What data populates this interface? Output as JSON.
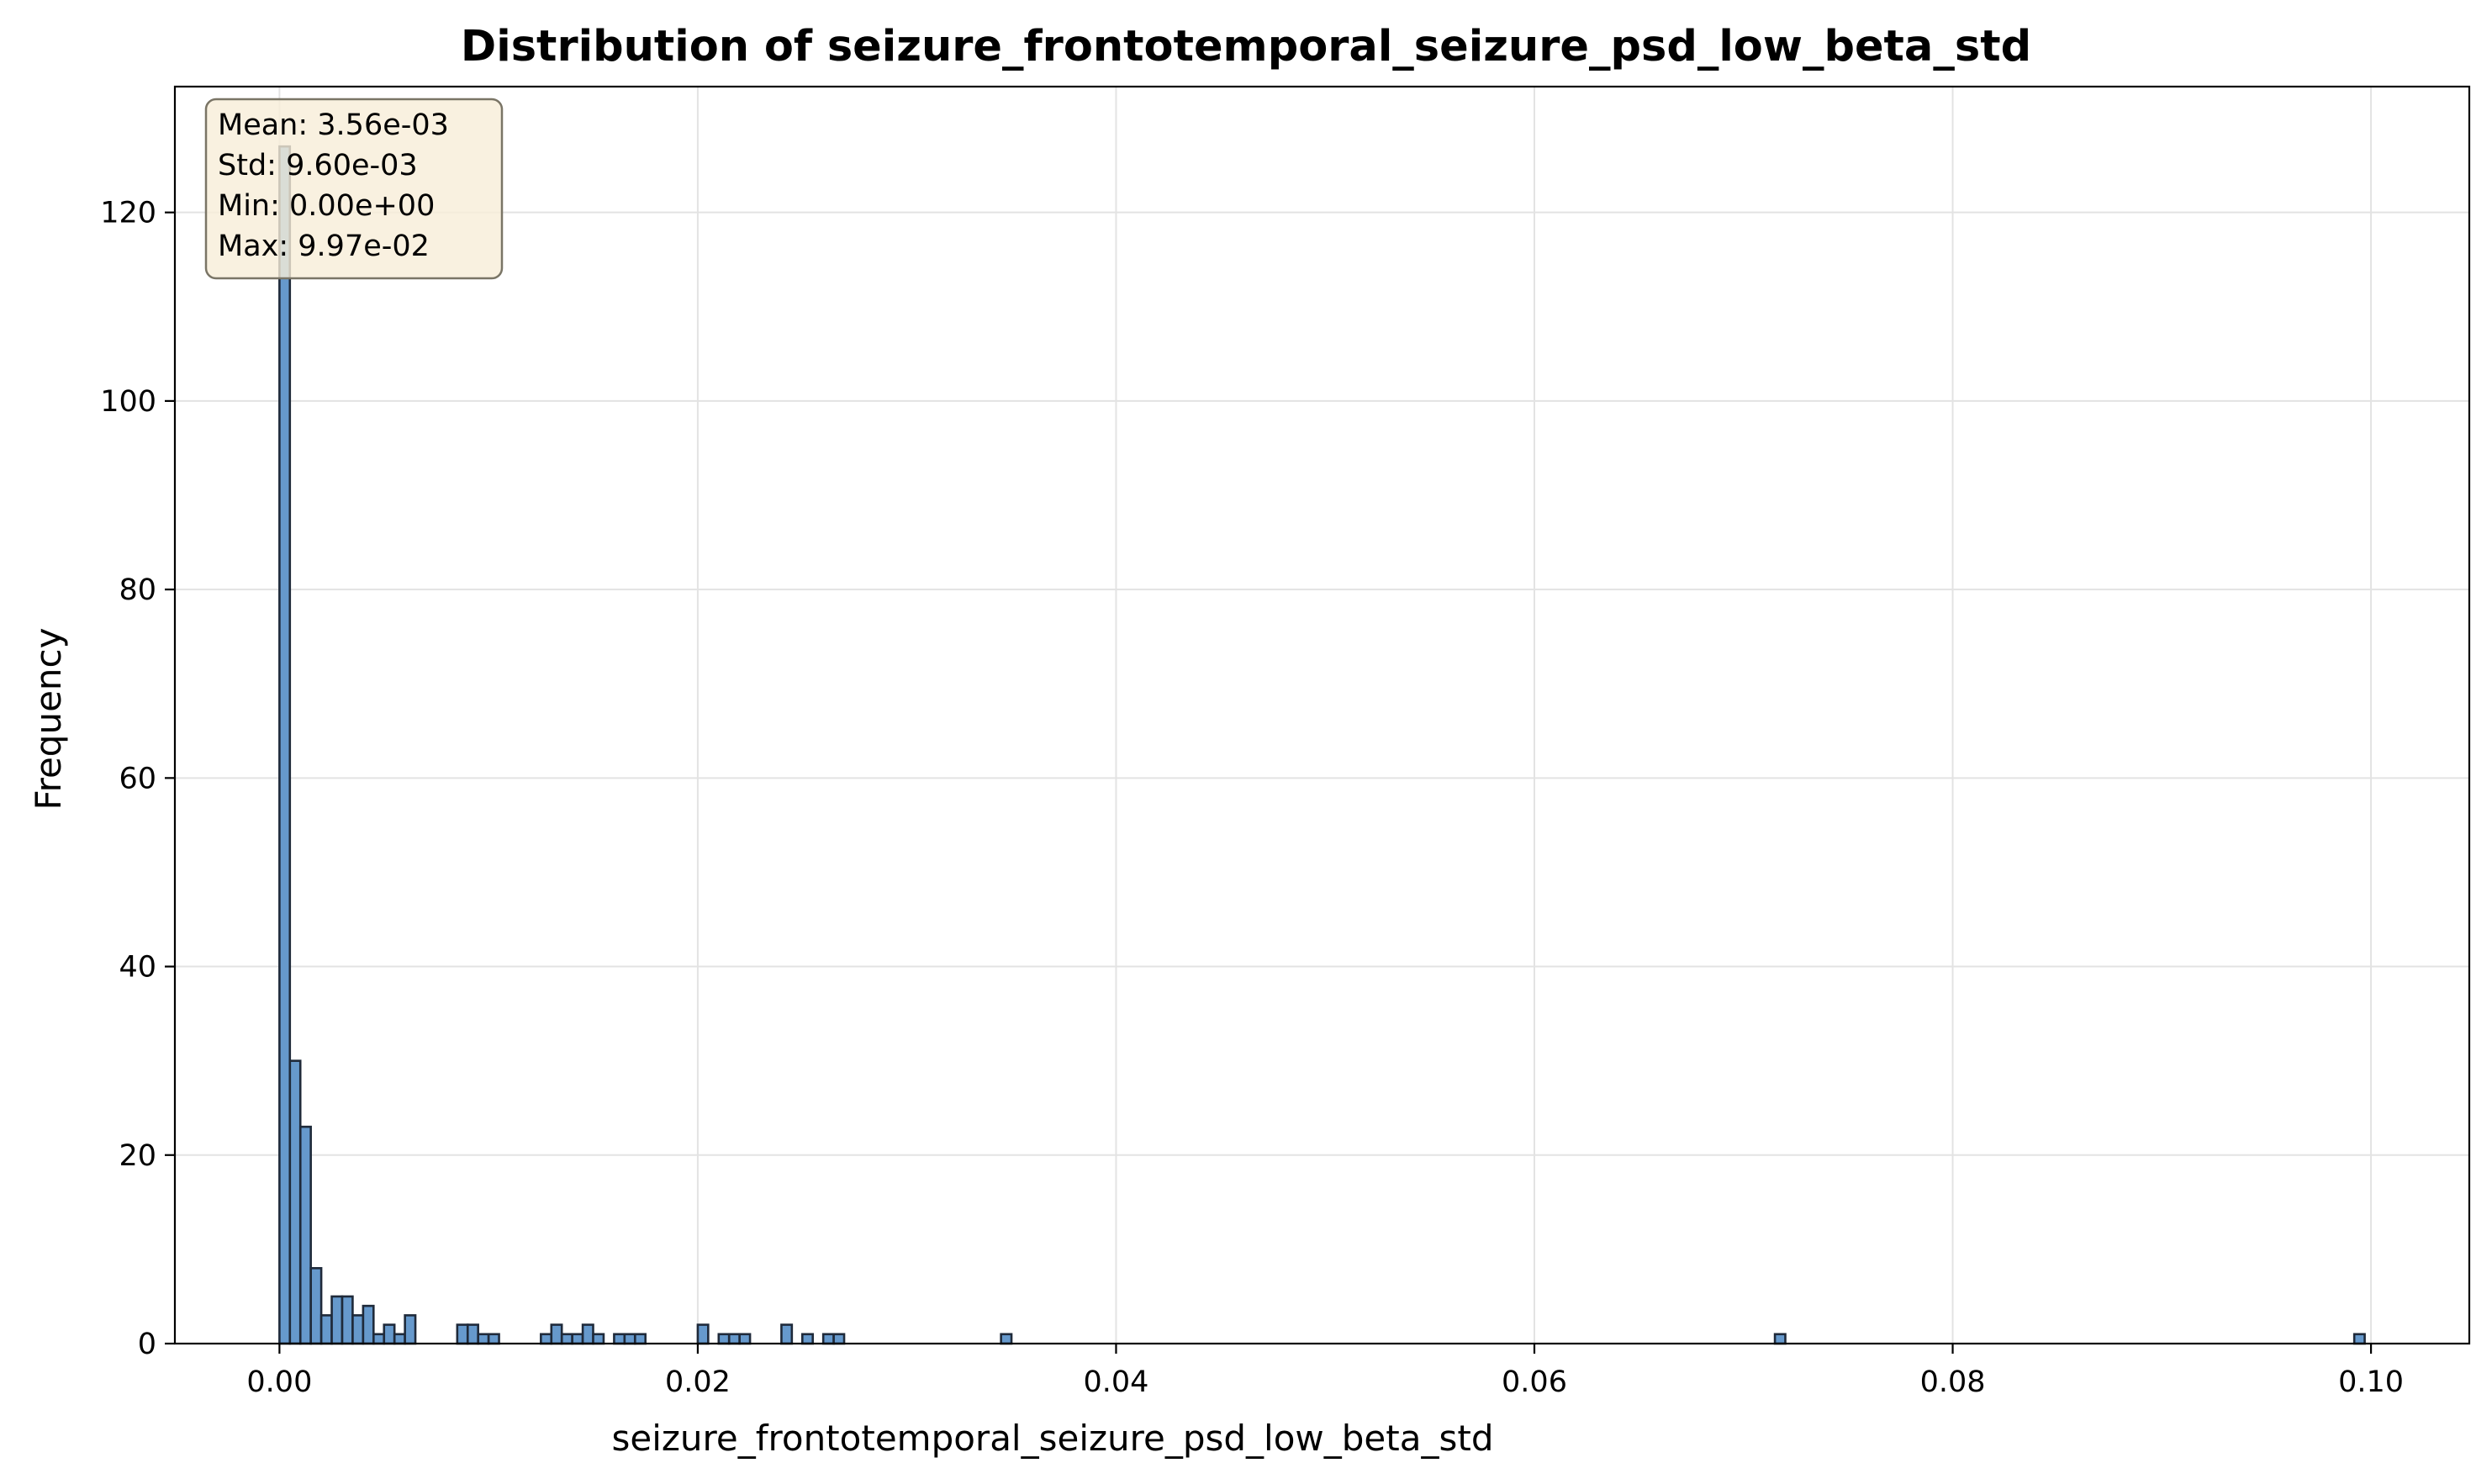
{
  "chart_data": {
    "type": "bar",
    "title": "Distribution of seizure_frontotemporal_seizure_psd_low_beta_std",
    "xlabel": "seizure_frontotemporal_seizure_psd_low_beta_std",
    "ylabel": "Frequency",
    "xlim": [
      -0.005,
      0.1047
    ],
    "ylim": [
      0,
      133.35
    ],
    "xticks": [
      0.0,
      0.02,
      0.04,
      0.06,
      0.08,
      0.1
    ],
    "xtick_labels": [
      "0.00",
      "0.02",
      "0.04",
      "0.06",
      "0.08",
      "0.10"
    ],
    "yticks": [
      0,
      20,
      40,
      60,
      80,
      100,
      120
    ],
    "ytick_labels": [
      "0",
      "20",
      "40",
      "60",
      "80",
      "100",
      "120"
    ],
    "grid": true,
    "bin_width": 0.0004985,
    "bins": [
      {
        "x": 0.0,
        "count": 127
      },
      {
        "x": 0.0005,
        "count": 30
      },
      {
        "x": 0.001,
        "count": 23
      },
      {
        "x": 0.0015,
        "count": 8
      },
      {
        "x": 0.002,
        "count": 3
      },
      {
        "x": 0.0025,
        "count": 5
      },
      {
        "x": 0.003,
        "count": 5
      },
      {
        "x": 0.0035,
        "count": 3
      },
      {
        "x": 0.004,
        "count": 4
      },
      {
        "x": 0.0045,
        "count": 1
      },
      {
        "x": 0.005,
        "count": 2
      },
      {
        "x": 0.0055,
        "count": 1
      },
      {
        "x": 0.006,
        "count": 3
      },
      {
        "x": 0.0085,
        "count": 2
      },
      {
        "x": 0.009,
        "count": 2
      },
      {
        "x": 0.0095,
        "count": 1
      },
      {
        "x": 0.01,
        "count": 1
      },
      {
        "x": 0.0125,
        "count": 1
      },
      {
        "x": 0.013,
        "count": 2
      },
      {
        "x": 0.0135,
        "count": 1
      },
      {
        "x": 0.014,
        "count": 1
      },
      {
        "x": 0.0145,
        "count": 2
      },
      {
        "x": 0.015,
        "count": 1
      },
      {
        "x": 0.016,
        "count": 1
      },
      {
        "x": 0.0165,
        "count": 1
      },
      {
        "x": 0.017,
        "count": 1
      },
      {
        "x": 0.02,
        "count": 2
      },
      {
        "x": 0.021,
        "count": 1
      },
      {
        "x": 0.0215,
        "count": 1
      },
      {
        "x": 0.022,
        "count": 1
      },
      {
        "x": 0.024,
        "count": 2
      },
      {
        "x": 0.025,
        "count": 1
      },
      {
        "x": 0.026,
        "count": 1
      },
      {
        "x": 0.0265,
        "count": 1
      },
      {
        "x": 0.0345,
        "count": 1
      },
      {
        "x": 0.0715,
        "count": 1
      },
      {
        "x": 0.0992,
        "count": 1
      }
    ],
    "stats": {
      "mean": "Mean: 3.56e-03",
      "std": "Std: 9.60e-03",
      "min": "Min: 0.00e+00",
      "max": "Max: 9.97e-02"
    },
    "stats_box_placement": "top-left",
    "colors": {
      "bar_fill": "#6699cc",
      "bar_edge": "#1f2a3a",
      "grid": "#e3e3e3",
      "stats_box_fill": "#f8edd8",
      "stats_box_edge": "#7a7566"
    }
  }
}
